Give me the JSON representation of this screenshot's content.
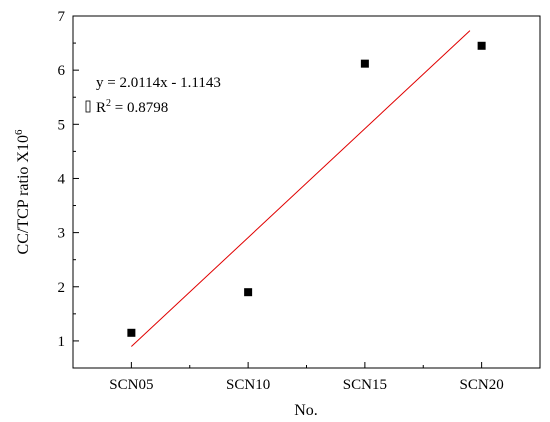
{
  "chart_data": {
    "type": "scatter",
    "title": "",
    "xlabel": "No.",
    "ylabel_main": "CC/TCP ratio X10",
    "ylabel_exp": "6",
    "categories": [
      "SCN05",
      "SCN10",
      "SCN15",
      "SCN20"
    ],
    "x": [
      1,
      2,
      3,
      4
    ],
    "y": [
      1.15,
      1.9,
      6.12,
      6.45
    ],
    "ylim": [
      0.5,
      7
    ],
    "yticks": [
      "1",
      "2",
      "3",
      "4",
      "5",
      "6",
      "7"
    ],
    "fit": {
      "slope": 2.0114,
      "intercept": -1.1143,
      "x_range": [
        1,
        3.9
      ],
      "color": "#e00000",
      "equation": "y = 2.0114x - 1.1143",
      "r2_prefix": "R",
      "r2_exp": "2",
      "r2_value": " = 0.8798"
    },
    "marker_color": "#000000",
    "grid": false,
    "legend": "none"
  }
}
